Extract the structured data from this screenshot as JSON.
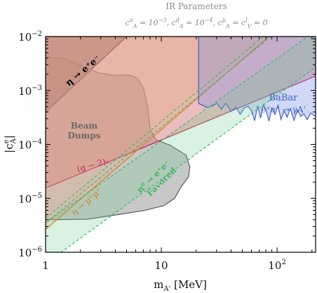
{
  "chart_data": {
    "type": "area",
    "title": "IR Parameters",
    "subtitle": "c_A^u = 10^-3, c_A^d = 10^-4, c_A^μ = c_V^l = 0",
    "xlabel": "m_A' [MeV]",
    "ylabel": "|c_A^e|",
    "xscale": "log",
    "yscale": "log",
    "xlim": [
      1,
      215
    ],
    "ylim": [
      1e-06,
      0.01
    ],
    "x_ticks": [
      {
        "value": 1,
        "label": "1"
      },
      {
        "value": 10,
        "label": "10"
      },
      {
        "value": 100,
        "label": "10^2"
      }
    ],
    "y_ticks": [
      {
        "value": 1e-06,
        "label": "10^-6"
      },
      {
        "value": 1e-05,
        "label": "10^-5"
      },
      {
        "value": 0.0001,
        "label": "10^-4"
      },
      {
        "value": 0.001,
        "label": "10^-3"
      },
      {
        "value": 0.01,
        "label": "10^-2"
      }
    ],
    "regions": [
      {
        "name": "eta_ee",
        "label": "η → e⁺e⁻",
        "fill": "#5a4a4a",
        "opacity": 0.55,
        "stroke": "#000000",
        "points": [
          [
            1,
            0.000395
          ],
          [
            5,
            0.01
          ],
          [
            1,
            0.01
          ]
        ]
      },
      {
        "name": "beam_dumps",
        "label": "Beam Dumps",
        "fill": "#6e6e6e",
        "opacity": 0.38,
        "stroke": "#5a5a5a",
        "points": [
          [
            1,
            0.0043
          ],
          [
            1.5,
            0.0038
          ],
          [
            2.1,
            0.0028
          ],
          [
            2.9,
            0.0021
          ],
          [
            4.0,
            0.0019
          ],
          [
            5.2,
            0.00195
          ],
          [
            6.2,
            0.0017
          ],
          [
            7.0,
            0.0011
          ],
          [
            7.6,
            0.00052
          ],
          [
            8.0,
            0.00019
          ],
          [
            9.0,
            0.000122
          ],
          [
            12,
            9.6e-05
          ],
          [
            16.4,
            6.3e-05
          ],
          [
            17.6,
            3.8e-05
          ],
          [
            17.2,
            2.5e-05
          ],
          [
            15,
            1.7e-05
          ],
          [
            13,
            1e-05
          ],
          [
            10.5,
            7.3e-06
          ],
          [
            7.0,
            5.9e-06
          ],
          [
            4.0,
            4.9e-06
          ],
          [
            2.3,
            4.1e-06
          ],
          [
            1,
            4e-06
          ]
        ]
      },
      {
        "name": "g_minus_2",
        "label": "(g − 2)ₑ",
        "fill": "#d9868c",
        "opacity": 0.55,
        "stroke": "#c0245a",
        "points": [
          [
            1,
            1.55e-05
          ],
          [
            215,
            0.00185
          ],
          [
            215,
            0.01
          ],
          [
            1,
            0.01
          ]
        ]
      },
      {
        "name": "eta_mumu",
        "label": "η → μ⁺μ⁻",
        "fill": "#e2a87a",
        "opacity": 0.35,
        "stroke": "#d97a20",
        "points": [
          [
            1,
            2.65e-06
          ],
          [
            85,
            0.01
          ],
          [
            1,
            0.01
          ]
        ]
      },
      {
        "name": "babar",
        "label": "BaBar",
        "sublabel": "e⁺e⁻ → γA'",
        "fill": "#7b8fe0",
        "opacity": 0.35,
        "stroke": "#3a5fc8",
        "points": [
          [
            21,
            0.01
          ],
          [
            21,
            0.000575
          ],
          [
            25,
            0.00048
          ],
          [
            28,
            0.00052
          ],
          [
            30,
            0.00058
          ],
          [
            33,
            0.00045
          ],
          [
            36,
            0.00058
          ],
          [
            40,
            0.00041
          ],
          [
            44,
            0.00049
          ],
          [
            48,
            0.00036
          ],
          [
            52,
            0.00047
          ],
          [
            56,
            0.00051
          ],
          [
            60,
            0.00042
          ],
          [
            64,
            0.00028
          ],
          [
            68,
            0.00052
          ],
          [
            72,
            0.00031
          ],
          [
            76,
            0.00054
          ],
          [
            80,
            0.00044
          ],
          [
            85,
            0.00027
          ],
          [
            90,
            0.00047
          ],
          [
            96,
            0.00036
          ],
          [
            102,
            0.00053
          ],
          [
            108,
            0.00029
          ],
          [
            115,
            0.00042
          ],
          [
            122,
            0.00032
          ],
          [
            130,
            0.00046
          ],
          [
            140,
            0.00028
          ],
          [
            150,
            0.00043
          ],
          [
            160,
            0.00033
          ],
          [
            170,
            0.00037
          ],
          [
            182,
            0.00029
          ],
          [
            195,
            0.00038
          ],
          [
            215,
            0.00033
          ],
          [
            215,
            0.01
          ]
        ]
      },
      {
        "name": "pi0_favored",
        "label": "π⁰ → e⁺e⁻",
        "sublabel": "Favored",
        "fill": "#66cc88",
        "opacity": 0.25,
        "stroke": "#3db866",
        "points": [
          [
            1,
            3.5e-06
          ],
          [
            1,
            1e-06
          ],
          [
            1.36,
            1e-06
          ],
          [
            215,
            0.0027
          ],
          [
            215,
            0.0108
          ],
          [
            185,
            0.01
          ]
        ]
      }
    ],
    "lines": [
      {
        "name": "eta_mumu_upper_dash",
        "color": "#3db866",
        "dash": true,
        "points": [
          [
            1,
            4.3e-06
          ],
          [
            76,
            0.01
          ]
        ]
      },
      {
        "name": "eta_mumu_lower_dash",
        "color": "#3db866",
        "dash": true,
        "points": [
          [
            1,
            3.5e-06
          ],
          [
            88,
            0.01
          ]
        ]
      }
    ]
  }
}
